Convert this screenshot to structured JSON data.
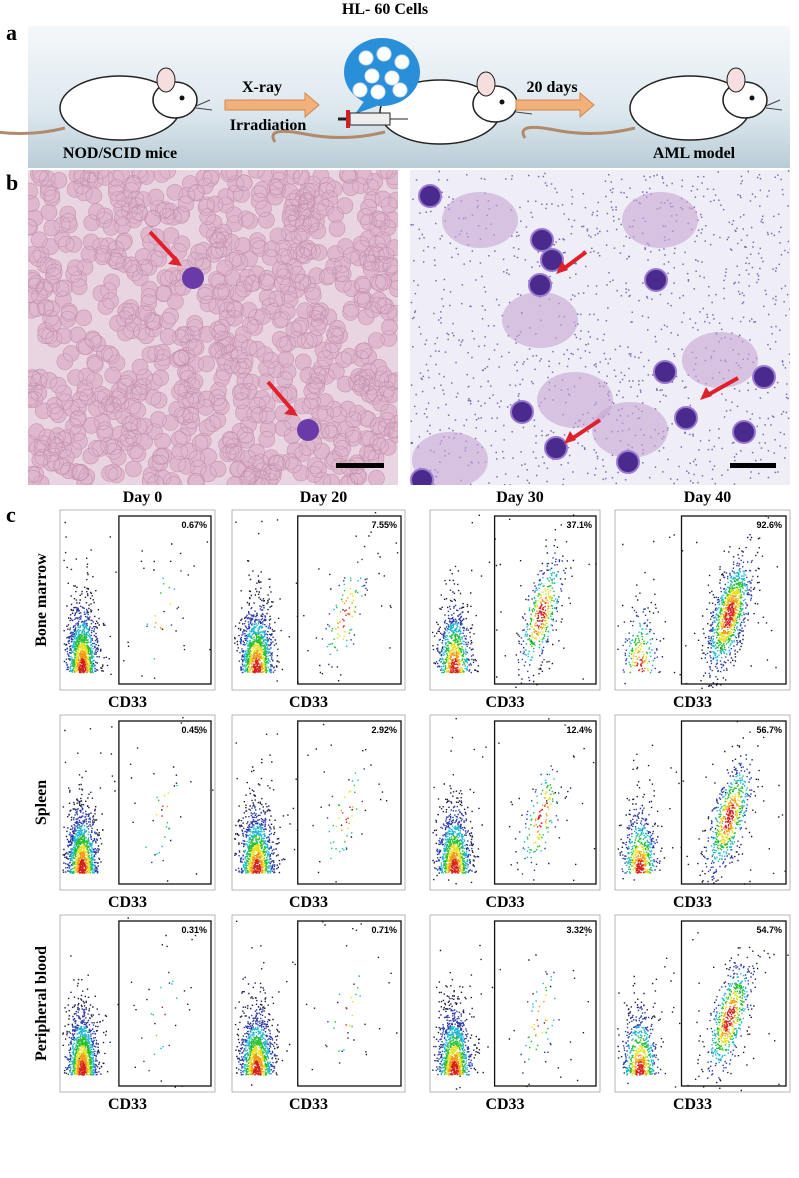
{
  "panel_labels": {
    "a": "a",
    "b": "b",
    "c": "c"
  },
  "schematic": {
    "cells_label": "HL- 60 Cells",
    "step1_top": "X-ray",
    "step1_bottom": "Irradiation",
    "mice_label": "NOD/SCID mice",
    "step2": "20 days",
    "model_label": "AML model"
  },
  "flow": {
    "columns": [
      "Day 0",
      "Day 20",
      "Day 30",
      "Day 40"
    ],
    "rows": [
      {
        "label": "Bone marrow",
        "gates": [
          "0.67%",
          "7.55%",
          "37.1%",
          "92.6%"
        ]
      },
      {
        "label": "Spleen",
        "gates": [
          "0.45%",
          "2.92%",
          "12.4%",
          "56.7%"
        ]
      },
      {
        "label": "Peripheral blood",
        "gates": [
          "0.31%",
          "0.71%",
          "3.32%",
          "54.7%"
        ]
      }
    ],
    "x_axis_label": "CD33"
  }
}
